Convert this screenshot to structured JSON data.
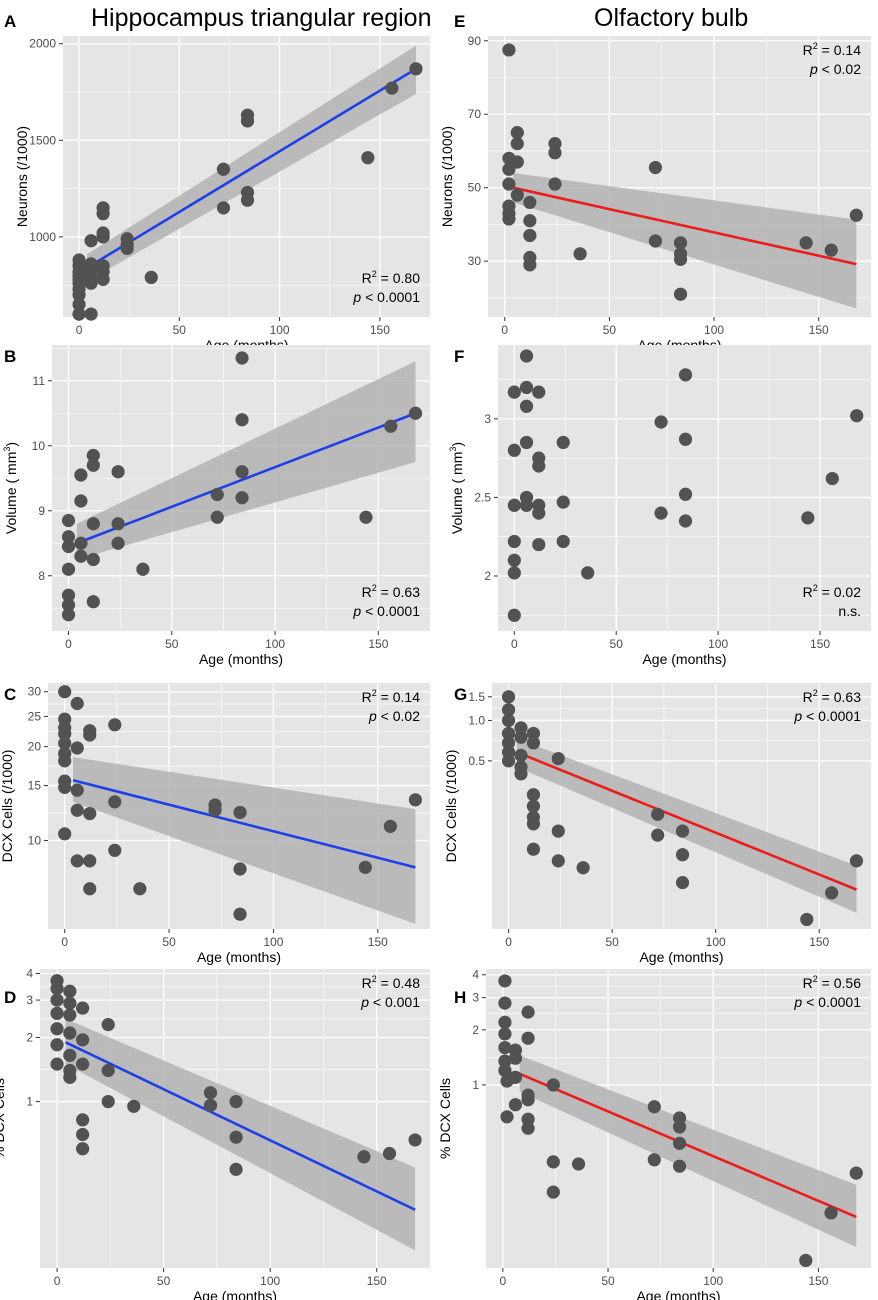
{
  "headers": {
    "left": "Hippocampus triangular region",
    "right": "Olfactory bulb"
  },
  "colors": {
    "panel_bg": "#e5e5e5",
    "grid": "#ffffff",
    "point": "#525252",
    "band": "#b3b3b3",
    "blue": "#1f3fea",
    "red": "#ec1c1c"
  },
  "chart_data": [
    {
      "id": "A",
      "letter": "A",
      "type": "scatter",
      "title": "Hippocampus triangular region",
      "xlabel": "Age (months)",
      "ylabel": "Neurons (/1000)",
      "scale": "linear",
      "xlim": [
        -8,
        175
      ],
      "ylim": [
        585,
        2040
      ],
      "xticks": [
        0,
        50,
        100,
        150
      ],
      "yticks": [
        1000,
        1500,
        2000
      ],
      "fit": {
        "color": "blue",
        "x": [
          4,
          168
        ],
        "y": [
          840,
          1870
        ],
        "band_lo": [
          770,
          1740
        ],
        "band_hi": [
          910,
          1990
        ]
      },
      "annotation": {
        "r2_label": "R",
        "r2_exp": "2",
        "r2_value": " = 0.80",
        "p_label": "p",
        "p_value": " < 0.0001"
      },
      "points": [
        [
          0,
          600
        ],
        [
          0,
          650
        ],
        [
          0,
          700
        ],
        [
          0,
          730
        ],
        [
          0,
          760
        ],
        [
          0,
          780
        ],
        [
          0,
          800
        ],
        [
          0,
          820
        ],
        [
          0,
          850
        ],
        [
          0,
          880
        ],
        [
          6,
          600
        ],
        [
          6,
          760
        ],
        [
          6,
          790
        ],
        [
          6,
          830
        ],
        [
          6,
          860
        ],
        [
          6,
          980
        ],
        [
          12,
          780
        ],
        [
          12,
          820
        ],
        [
          12,
          850
        ],
        [
          12,
          1000
        ],
        [
          12,
          1020
        ],
        [
          12,
          1120
        ],
        [
          12,
          1150
        ],
        [
          24,
          940
        ],
        [
          24,
          960
        ],
        [
          24,
          990
        ],
        [
          36,
          790
        ],
        [
          72,
          1150
        ],
        [
          72,
          1350
        ],
        [
          84,
          1190
        ],
        [
          84,
          1230
        ],
        [
          84,
          1600
        ],
        [
          84,
          1630
        ],
        [
          144,
          1410
        ],
        [
          156,
          1770
        ],
        [
          168,
          1870
        ]
      ]
    },
    {
      "id": "B",
      "letter": "B",
      "type": "scatter",
      "xlabel": "Age (months)",
      "ylabel": "Volume ( mm",
      "ylabel_sup": "3",
      "ylabel_end": ")",
      "scale": "linear",
      "xlim": [
        -8,
        175
      ],
      "ylim": [
        7.15,
        11.55
      ],
      "xticks": [
        0,
        50,
        100,
        150
      ],
      "yticks": [
        8,
        9,
        10,
        11
      ],
      "fit": {
        "color": "blue",
        "x": [
          4,
          168
        ],
        "y": [
          8.5,
          10.5
        ],
        "band_lo": [
          8.25,
          9.75
        ],
        "band_hi": [
          8.8,
          11.3
        ]
      },
      "annotation": {
        "r2_label": "R",
        "r2_exp": "2",
        "r2_value": " = 0.63",
        "p_label": "p",
        "p_value": " < 0.0001"
      },
      "points": [
        [
          0,
          7.4
        ],
        [
          0,
          7.55
        ],
        [
          0,
          7.7
        ],
        [
          0,
          8.1
        ],
        [
          0,
          8.45
        ],
        [
          0,
          8.6
        ],
        [
          0,
          8.85
        ],
        [
          6,
          8.3
        ],
        [
          6,
          8.5
        ],
        [
          6,
          9.15
        ],
        [
          6,
          9.55
        ],
        [
          12,
          7.6
        ],
        [
          12,
          8.25
        ],
        [
          12,
          8.8
        ],
        [
          12,
          9.7
        ],
        [
          12,
          9.85
        ],
        [
          24,
          8.5
        ],
        [
          24,
          8.8
        ],
        [
          24,
          9.6
        ],
        [
          36,
          8.1
        ],
        [
          72,
          8.9
        ],
        [
          72,
          9.25
        ],
        [
          84,
          9.2
        ],
        [
          84,
          9.6
        ],
        [
          84,
          10.4
        ],
        [
          84,
          11.35
        ],
        [
          144,
          8.9
        ],
        [
          156,
          10.3
        ],
        [
          168,
          10.5
        ]
      ]
    },
    {
      "id": "C",
      "letter": "C",
      "type": "scatter",
      "xlabel": "Age (months)",
      "ylabel": "DCX Cells (/1000)",
      "scale": "log",
      "xlim": [
        -8,
        175
      ],
      "ylim": [
        5.2,
        32
      ],
      "xticks": [
        0,
        50,
        100,
        150
      ],
      "yticks": [
        10,
        15,
        20,
        25,
        30
      ],
      "fit": {
        "color": "blue",
        "x": [
          4,
          168
        ],
        "y": [
          15.6,
          8.2
        ],
        "band_lo": [
          13.3,
          5.4
        ],
        "band_hi": [
          18.5,
          12.6
        ]
      },
      "annotation": {
        "r2_label": "R",
        "r2_exp": "2",
        "r2_value": " = 0.14",
        "p_label": "p",
        "p_value": " < 0.02"
      },
      "points": [
        [
          0,
          30
        ],
        [
          0,
          24.5
        ],
        [
          0,
          23
        ],
        [
          0,
          22
        ],
        [
          0,
          20.5
        ],
        [
          0,
          19
        ],
        [
          0,
          18
        ],
        [
          0,
          15.5
        ],
        [
          0,
          14.8
        ],
        [
          0,
          10.5
        ],
        [
          6,
          27.5
        ],
        [
          6,
          19.8
        ],
        [
          6,
          14.5
        ],
        [
          6,
          12.5
        ],
        [
          6,
          8.6
        ],
        [
          12,
          22.5
        ],
        [
          12,
          21.8
        ],
        [
          12,
          12.2
        ],
        [
          12,
          8.6
        ],
        [
          12,
          7
        ],
        [
          24,
          23.5
        ],
        [
          24,
          13.3
        ],
        [
          24,
          9.3
        ],
        [
          36,
          7
        ],
        [
          72,
          13
        ],
        [
          72,
          12.5
        ],
        [
          84,
          12.3
        ],
        [
          84,
          8.1
        ],
        [
          84,
          5.8
        ],
        [
          144,
          8.2
        ],
        [
          156,
          11.1
        ],
        [
          168,
          13.5
        ]
      ]
    },
    {
      "id": "D",
      "letter": "D",
      "type": "scatter",
      "xlabel": "Age (months)",
      "ylabel": "% DCX Cells",
      "scale": "log",
      "xlim": [
        -8,
        175
      ],
      "ylim": [
        0.165,
        4.2
      ],
      "xticks": [
        0,
        50,
        100,
        150
      ],
      "yticks": [
        1,
        2,
        3,
        4
      ],
      "fit": {
        "color": "blue",
        "x": [
          4,
          168
        ],
        "y": [
          1.9,
          0.31
        ],
        "band_lo": [
          1.5,
          0.2
        ],
        "band_hi": [
          2.45,
          0.49
        ]
      },
      "annotation": {
        "r2_label": "R",
        "r2_exp": "2",
        "r2_value": " = 0.48",
        "p_label": "p",
        "p_value": " < 0.001"
      },
      "points": [
        [
          0,
          3.7
        ],
        [
          0,
          3.4
        ],
        [
          0,
          3.0
        ],
        [
          0,
          2.6
        ],
        [
          0,
          2.2
        ],
        [
          0,
          1.85
        ],
        [
          0,
          1.5
        ],
        [
          6,
          3.3
        ],
        [
          6,
          2.9
        ],
        [
          6,
          2.55
        ],
        [
          6,
          2.1
        ],
        [
          6,
          1.65
        ],
        [
          6,
          1.4
        ],
        [
          6,
          1.3
        ],
        [
          12,
          2.75
        ],
        [
          12,
          1.95
        ],
        [
          12,
          1.5
        ],
        [
          12,
          0.82
        ],
        [
          12,
          0.7
        ],
        [
          12,
          0.6
        ],
        [
          24,
          2.3
        ],
        [
          24,
          1.4
        ],
        [
          24,
          1.0
        ],
        [
          36,
          0.95
        ],
        [
          72,
          1.1
        ],
        [
          72,
          0.96
        ],
        [
          84,
          1.0
        ],
        [
          84,
          0.68
        ],
        [
          84,
          0.48
        ],
        [
          144,
          0.55
        ],
        [
          156,
          0.57
        ],
        [
          168,
          0.66
        ]
      ]
    },
    {
      "id": "E",
      "letter": "E",
      "type": "scatter",
      "title": "Olfactory bulb",
      "xlabel": "Age (months)",
      "ylabel": "Neurons (/1000)",
      "scale": "linear",
      "xlim": [
        -8,
        175
      ],
      "ylim": [
        14.8,
        91.3
      ],
      "xticks": [
        0,
        50,
        100,
        150
      ],
      "yticks": [
        30,
        50,
        70,
        90
      ],
      "fit": {
        "color": "red",
        "x": [
          4,
          168
        ],
        "y": [
          50,
          29.2
        ],
        "band_lo": [
          46,
          17.1
        ],
        "band_hi": [
          54,
          41.3
        ]
      },
      "annotation": {
        "r2_label": "R",
        "r2_exp": "2",
        "r2_value": " = 0.14",
        "p_label": "p",
        "p_value": " < 0.02"
      },
      "points": [
        [
          2,
          87.5
        ],
        [
          2,
          58
        ],
        [
          2,
          55
        ],
        [
          2,
          51
        ],
        [
          2,
          45
        ],
        [
          2,
          43
        ],
        [
          2,
          41.5
        ],
        [
          6,
          65
        ],
        [
          6,
          62
        ],
        [
          6,
          57
        ],
        [
          6,
          48
        ],
        [
          12,
          46
        ],
        [
          12,
          41
        ],
        [
          12,
          37
        ],
        [
          12,
          31
        ],
        [
          12,
          29
        ],
        [
          24,
          62
        ],
        [
          24,
          59.5
        ],
        [
          24,
          51
        ],
        [
          36,
          32
        ],
        [
          72,
          55.5
        ],
        [
          72,
          35.5
        ],
        [
          84,
          35
        ],
        [
          84,
          32
        ],
        [
          84,
          30.5
        ],
        [
          84,
          21
        ],
        [
          144,
          35
        ],
        [
          156,
          33
        ],
        [
          168,
          42.5
        ]
      ]
    },
    {
      "id": "F",
      "letter": "F",
      "type": "scatter",
      "xlabel": "Age (months)",
      "ylabel": "Volume ( mm",
      "ylabel_sup": "3",
      "ylabel_end": ")",
      "scale": "linear",
      "xlim": [
        -8,
        175
      ],
      "ylim": [
        1.65,
        3.47
      ],
      "xticks": [
        0,
        50,
        100,
        150
      ],
      "yticks": [
        2.0,
        2.5,
        3.0
      ],
      "fit": null,
      "annotation": {
        "r2_label": "R",
        "r2_exp": "2",
        "r2_value": " = 0.02",
        "p_label": "",
        "p_value": "n.s."
      },
      "points": [
        [
          0,
          1.75
        ],
        [
          0,
          2.02
        ],
        [
          0,
          2.1
        ],
        [
          0,
          2.22
        ],
        [
          0,
          2.45
        ],
        [
          0,
          2.8
        ],
        [
          0,
          3.17
        ],
        [
          6,
          3.4
        ],
        [
          6,
          3.2
        ],
        [
          6,
          3.08
        ],
        [
          6,
          2.85
        ],
        [
          6,
          2.5
        ],
        [
          6,
          2.45
        ],
        [
          12,
          3.17
        ],
        [
          12,
          2.75
        ],
        [
          12,
          2.7
        ],
        [
          12,
          2.45
        ],
        [
          12,
          2.4
        ],
        [
          12,
          2.2
        ],
        [
          24,
          2.85
        ],
        [
          24,
          2.47
        ],
        [
          24,
          2.22
        ],
        [
          36,
          2.02
        ],
        [
          72,
          2.98
        ],
        [
          72,
          2.4
        ],
        [
          84,
          3.28
        ],
        [
          84,
          2.87
        ],
        [
          84,
          2.52
        ],
        [
          84,
          2.35
        ],
        [
          144,
          2.37
        ],
        [
          156,
          2.62
        ],
        [
          168,
          3.02
        ]
      ]
    },
    {
      "id": "G",
      "letter": "G",
      "type": "scatter",
      "xlabel": "Age (months)",
      "ylabel": "DCX Cells (/1000)",
      "scale": "log",
      "xlim": [
        -8,
        175
      ],
      "ylim": [
        0.028,
        1.9
      ],
      "xticks": [
        0,
        50,
        100,
        150
      ],
      "yticks": [
        0.5,
        1.0,
        1.5
      ],
      "yticklabels": [
        "0.5",
        "1.0",
        "1.5"
      ],
      "fit": {
        "color": "red",
        "x": [
          4,
          168
        ],
        "y": [
          0.58,
          0.055
        ],
        "band_lo": [
          0.45,
          0.037
        ],
        "band_hi": [
          0.73,
          0.083
        ]
      },
      "annotation": {
        "r2_label": "R",
        "r2_exp": "2",
        "r2_value": " = 0.63",
        "p_label": "p",
        "p_value": " < 0.0001"
      },
      "points": [
        [
          0,
          1.5
        ],
        [
          0,
          1.2
        ],
        [
          0,
          1.0
        ],
        [
          0,
          0.8
        ],
        [
          0,
          0.68
        ],
        [
          0,
          0.58
        ],
        [
          0,
          0.5
        ],
        [
          6,
          0.88
        ],
        [
          6,
          0.75
        ],
        [
          6,
          0.55
        ],
        [
          6,
          0.45
        ],
        [
          6,
          0.4
        ],
        [
          12,
          0.8
        ],
        [
          12,
          0.68
        ],
        [
          12,
          0.28
        ],
        [
          12,
          0.23
        ],
        [
          12,
          0.19
        ],
        [
          12,
          0.17
        ],
        [
          12,
          0.11
        ],
        [
          24,
          0.52
        ],
        [
          24,
          0.15
        ],
        [
          24,
          0.09
        ],
        [
          36,
          0.08
        ],
        [
          72,
          0.2
        ],
        [
          72,
          0.14
        ],
        [
          84,
          0.15
        ],
        [
          84,
          0.1
        ],
        [
          84,
          0.062
        ],
        [
          144,
          0.033
        ],
        [
          156,
          0.052
        ],
        [
          168,
          0.09
        ]
      ]
    },
    {
      "id": "H",
      "letter": "H",
      "type": "scatter",
      "xlabel": "Age (months)",
      "ylabel": "% DCX Cells",
      "scale": "log",
      "xlim": [
        -8,
        175
      ],
      "ylim": [
        0.1,
        4.3
      ],
      "xticks": [
        0,
        50,
        100,
        150
      ],
      "yticks": [
        1,
        2,
        3,
        4
      ],
      "fit": {
        "color": "red",
        "x": [
          8,
          168
        ],
        "y": [
          1.15,
          0.19
        ],
        "band_lo": [
          0.92,
          0.13
        ],
        "band_hi": [
          1.45,
          0.285
        ]
      },
      "annotation": {
        "r2_label": "R",
        "r2_exp": "2",
        "r2_value": " = 0.56",
        "p_label": "p",
        "p_value": " < 0.0001"
      },
      "points": [
        [
          1,
          3.7
        ],
        [
          1,
          2.8
        ],
        [
          1,
          2.2
        ],
        [
          1,
          1.9
        ],
        [
          1,
          1.6
        ],
        [
          1,
          1.35
        ],
        [
          1,
          1.2
        ],
        [
          2,
          1.05
        ],
        [
          2,
          0.67
        ],
        [
          6,
          1.55
        ],
        [
          6,
          1.4
        ],
        [
          6,
          1.1
        ],
        [
          6,
          0.78
        ],
        [
          12,
          2.5
        ],
        [
          12,
          1.8
        ],
        [
          12,
          0.88
        ],
        [
          12,
          0.83
        ],
        [
          12,
          0.65
        ],
        [
          12,
          0.58
        ],
        [
          24,
          1.0
        ],
        [
          24,
          0.38
        ],
        [
          24,
          0.26
        ],
        [
          36,
          0.37
        ],
        [
          72,
          0.76
        ],
        [
          72,
          0.39
        ],
        [
          84,
          0.66
        ],
        [
          84,
          0.59
        ],
        [
          84,
          0.48
        ],
        [
          84,
          0.36
        ],
        [
          144,
          0.11
        ],
        [
          156,
          0.2
        ],
        [
          168,
          0.33
        ]
      ]
    }
  ]
}
